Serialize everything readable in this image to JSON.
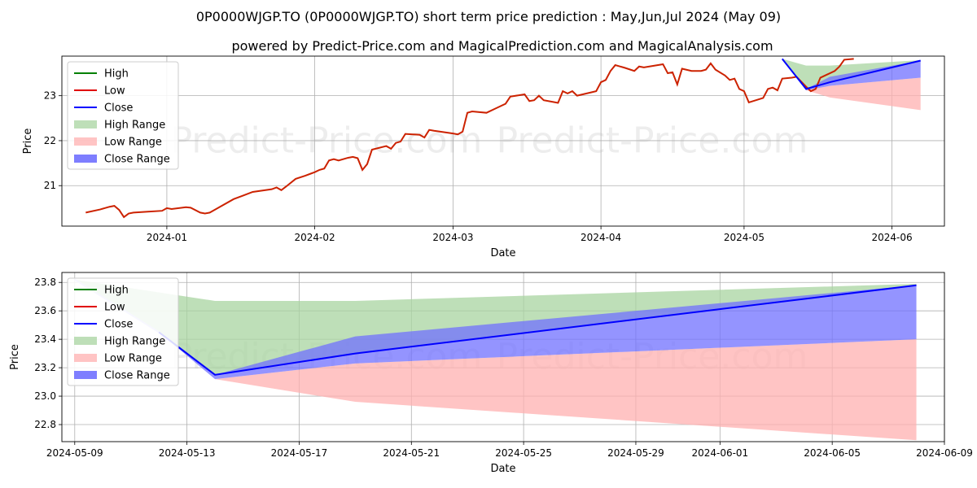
{
  "title": "0P0000WJGP.TO (0P0000WJGP.TO) short term price prediction : May,Jun,Jul 2024 (May 09)",
  "subtitle": "powered by Predict-Price.com and MagicalPrediction.com and MagicalAnalysis.com",
  "watermark": "Predict-Price.com",
  "colors": {
    "high": "#008000",
    "low": "#e00000",
    "close": "#0000ff",
    "high_range": "#a8d4a0",
    "low_range": "#ffb0b0",
    "close_range": "#7070ff",
    "hist": "#cc2200"
  },
  "chart_data": [
    {
      "type": "line",
      "xlabel": "Date",
      "ylabel": "Price",
      "xlim": [
        "2023-12-10",
        "2024-06-12"
      ],
      "ylim": [
        20.1,
        23.88
      ],
      "grid": true,
      "legend_position": "top-left",
      "x_ticks": [
        "2024-01",
        "2024-02",
        "2024-03",
        "2024-04",
        "2024-05",
        "2024-06"
      ],
      "y_ticks": [
        21,
        22,
        23
      ],
      "legend": [
        "High",
        "Low",
        "Close",
        "High Range",
        "Low Range",
        "Close Range"
      ],
      "history": {
        "name": "Low",
        "points": [
          [
            "2023-12-15",
            20.4
          ],
          [
            "2023-12-18",
            20.47
          ],
          [
            "2023-12-20",
            20.53
          ],
          [
            "2023-12-21",
            20.55
          ],
          [
            "2023-12-22",
            20.46
          ],
          [
            "2023-12-23",
            20.3
          ],
          [
            "2023-12-24",
            20.38
          ],
          [
            "2023-12-25",
            20.4
          ],
          [
            "2023-12-28",
            20.42
          ],
          [
            "2023-12-31",
            20.44
          ],
          [
            "2024-01-01",
            20.5
          ],
          [
            "2024-01-02",
            20.48
          ],
          [
            "2024-01-05",
            20.52
          ],
          [
            "2024-01-06",
            20.51
          ],
          [
            "2024-01-08",
            20.4
          ],
          [
            "2024-01-09",
            20.38
          ],
          [
            "2024-01-10",
            20.4
          ],
          [
            "2024-01-12",
            20.52
          ],
          [
            "2024-01-15",
            20.7
          ],
          [
            "2024-01-17",
            20.78
          ],
          [
            "2024-01-19",
            20.86
          ],
          [
            "2024-01-23",
            20.92
          ],
          [
            "2024-01-24",
            20.96
          ],
          [
            "2024-01-25",
            20.9
          ],
          [
            "2024-01-26",
            20.98
          ],
          [
            "2024-01-28",
            21.15
          ],
          [
            "2024-01-30",
            21.22
          ],
          [
            "2024-02-01",
            21.3
          ],
          [
            "2024-02-02",
            21.35
          ],
          [
            "2024-02-03",
            21.38
          ],
          [
            "2024-02-04",
            21.56
          ],
          [
            "2024-02-05",
            21.59
          ],
          [
            "2024-02-06",
            21.56
          ],
          [
            "2024-02-08",
            21.62
          ],
          [
            "2024-02-09",
            21.64
          ],
          [
            "2024-02-10",
            21.61
          ],
          [
            "2024-02-11",
            21.35
          ],
          [
            "2024-02-12",
            21.48
          ],
          [
            "2024-02-13",
            21.8
          ],
          [
            "2024-02-16",
            21.88
          ],
          [
            "2024-02-17",
            21.82
          ],
          [
            "2024-02-18",
            21.95
          ],
          [
            "2024-02-19",
            21.98
          ],
          [
            "2024-02-20",
            22.15
          ],
          [
            "2024-02-23",
            22.13
          ],
          [
            "2024-02-24",
            22.07
          ],
          [
            "2024-02-25",
            22.24
          ],
          [
            "2024-02-26",
            22.22
          ],
          [
            "2024-03-01",
            22.16
          ],
          [
            "2024-03-02",
            22.14
          ],
          [
            "2024-03-03",
            22.2
          ],
          [
            "2024-03-04",
            22.62
          ],
          [
            "2024-03-05",
            22.65
          ],
          [
            "2024-03-08",
            22.62
          ],
          [
            "2024-03-10",
            22.72
          ],
          [
            "2024-03-12",
            22.82
          ],
          [
            "2024-03-13",
            22.98
          ],
          [
            "2024-03-16",
            23.03
          ],
          [
            "2024-03-17",
            22.88
          ],
          [
            "2024-03-18",
            22.9
          ],
          [
            "2024-03-19",
            23.0
          ],
          [
            "2024-03-20",
            22.9
          ],
          [
            "2024-03-22",
            22.86
          ],
          [
            "2024-03-23",
            22.84
          ],
          [
            "2024-03-24",
            23.1
          ],
          [
            "2024-03-25",
            23.05
          ],
          [
            "2024-03-26",
            23.1
          ],
          [
            "2024-03-27",
            23.0
          ],
          [
            "2024-03-29",
            23.05
          ],
          [
            "2024-03-31",
            23.1
          ],
          [
            "2024-04-01",
            23.3
          ],
          [
            "2024-04-02",
            23.35
          ],
          [
            "2024-04-03",
            23.55
          ],
          [
            "2024-04-04",
            23.68
          ],
          [
            "2024-04-06",
            23.62
          ],
          [
            "2024-04-08",
            23.55
          ],
          [
            "2024-04-09",
            23.65
          ],
          [
            "2024-04-10",
            23.63
          ],
          [
            "2024-04-14",
            23.7
          ],
          [
            "2024-04-15",
            23.5
          ],
          [
            "2024-04-16",
            23.52
          ],
          [
            "2024-04-17",
            23.25
          ],
          [
            "2024-04-18",
            23.6
          ],
          [
            "2024-04-20",
            23.55
          ],
          [
            "2024-04-22",
            23.55
          ],
          [
            "2024-04-23",
            23.58
          ],
          [
            "2024-04-24",
            23.72
          ],
          [
            "2024-04-25",
            23.58
          ],
          [
            "2024-04-27",
            23.45
          ],
          [
            "2024-04-28",
            23.35
          ],
          [
            "2024-04-29",
            23.38
          ],
          [
            "2024-04-30",
            23.15
          ],
          [
            "2024-05-01",
            23.1
          ],
          [
            "2024-05-02",
            22.85
          ],
          [
            "2024-05-05",
            22.95
          ],
          [
            "2024-05-06",
            23.15
          ],
          [
            "2024-05-07",
            23.18
          ],
          [
            "2024-05-08",
            23.12
          ],
          [
            "2024-05-09",
            23.38
          ],
          [
            "2024-05-11",
            23.4
          ],
          [
            "2024-05-12",
            23.42
          ],
          [
            "2024-05-14",
            23.2
          ],
          [
            "2024-05-15",
            23.1
          ],
          [
            "2024-05-16",
            23.15
          ],
          [
            "2024-05-17",
            23.4
          ],
          [
            "2024-05-20",
            23.55
          ],
          [
            "2024-05-21",
            23.65
          ],
          [
            "2024-05-22",
            23.8
          ],
          [
            "2024-05-24",
            23.82
          ]
        ]
      },
      "forecast": {
        "dates": [
          "2024-05-09",
          "2024-05-14",
          "2024-05-19",
          "2024-06-07"
        ],
        "close": [
          23.82,
          23.15,
          23.3,
          23.78
        ],
        "high_range_upper": [
          23.82,
          23.67,
          23.67,
          23.79
        ],
        "high_range_lower": [
          23.82,
          23.15,
          23.3,
          23.78
        ],
        "low_range_upper": [
          23.82,
          23.12,
          23.22,
          23.4
        ],
        "low_range_lower": [
          23.82,
          23.12,
          22.96,
          22.68
        ],
        "close_range_upper": [
          23.82,
          23.15,
          23.42,
          23.78
        ],
        "close_range_lower": [
          23.82,
          23.12,
          23.22,
          23.4
        ]
      }
    },
    {
      "type": "line",
      "xlabel": "Date",
      "ylabel": "Price",
      "xlim": [
        "2024-05-08T13:00",
        "2024-06-09T00:00"
      ],
      "ylim": [
        22.68,
        23.87
      ],
      "grid": true,
      "legend_position": "top-left",
      "x_ticks": [
        "2024-05-09",
        "2024-05-13",
        "2024-05-17",
        "2024-05-21",
        "2024-05-25",
        "2024-05-29",
        "2024-06-01",
        "2024-06-05",
        "2024-06-09"
      ],
      "y_ticks": [
        22.8,
        23.0,
        23.2,
        23.4,
        23.6,
        23.8
      ],
      "legend": [
        "High",
        "Low",
        "Close",
        "High Range",
        "Low Range",
        "Close Range"
      ],
      "forecast": {
        "dates": [
          "2024-05-09",
          "2024-05-12",
          "2024-05-14",
          "2024-05-19",
          "2024-06-08"
        ],
        "close": [
          23.82,
          23.45,
          23.15,
          23.3,
          23.78
        ],
        "high_range_upper": [
          23.82,
          23.73,
          23.67,
          23.67,
          23.79
        ],
        "low_range_upper": [
          23.82,
          23.45,
          23.12,
          23.23,
          23.4
        ],
        "low_range_lower": [
          23.82,
          23.45,
          23.12,
          22.96,
          22.69
        ],
        "close_range_upper": [
          23.82,
          23.45,
          23.15,
          23.42,
          23.78
        ]
      }
    }
  ]
}
